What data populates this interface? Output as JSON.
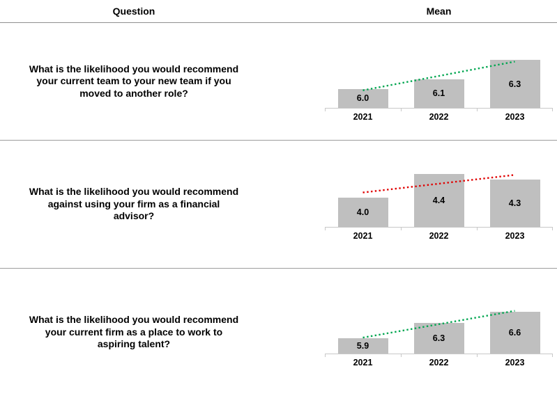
{
  "headers": {
    "question": "Question",
    "mean": "Mean"
  },
  "rows": [
    {
      "question": "What is the likelihood you would recommend your current team to your new team if you moved to another role?",
      "question_lines": [
        "What is the likelihood you would recommend",
        "your current team to your new team if you",
        "moved to another role?"
      ]
    },
    {
      "question": "What is the likelihood you would recommend against using your firm as a financial advisor?",
      "question_lines": [
        "What is the likelihood you would recommend",
        "against using your firm as a financial",
        "advisor?"
      ]
    },
    {
      "question": "What is the likelihood you would recommend your current firm as a place to work to aspiring talent?",
      "question_lines": [
        "What is the likelihood you would recommend",
        "your current firm as a place to work to",
        "aspiring talent?"
      ]
    }
  ],
  "chart_data": [
    {
      "type": "bar",
      "title": "Mean",
      "categories": [
        "2021",
        "2022",
        "2023"
      ],
      "values": [
        6.0,
        6.1,
        6.3
      ],
      "labels": [
        "6.0",
        "6.1",
        "6.3"
      ],
      "bar_color": "#BFBFBF",
      "trend": {
        "type": "linear",
        "style": "dotted",
        "color": "#00A650",
        "direction": "up"
      },
      "ylim": [
        5.8,
        6.6
      ],
      "grid": false,
      "data_label_position": "center"
    },
    {
      "type": "bar",
      "title": "Mean",
      "categories": [
        "2021",
        "2022",
        "2023"
      ],
      "values": [
        4.0,
        4.4,
        4.3
      ],
      "labels": [
        "4.0",
        "4.4",
        "4.3"
      ],
      "bar_color": "#BFBFBF",
      "trend": {
        "type": "linear",
        "style": "dotted",
        "color": "#E00000",
        "direction": "up"
      },
      "ylim": [
        3.5,
        4.8
      ],
      "grid": false,
      "data_label_position": "center"
    },
    {
      "type": "bar",
      "title": "Mean",
      "categories": [
        "2021",
        "2022",
        "2023"
      ],
      "values": [
        5.9,
        6.3,
        6.6
      ],
      "labels": [
        "5.9",
        "6.3",
        "6.6"
      ],
      "bar_color": "#BFBFBF",
      "trend": {
        "type": "linear",
        "style": "dotted",
        "color": "#00A650",
        "direction": "up"
      },
      "ylim": [
        5.5,
        7.5
      ],
      "grid": false,
      "data_label_position": "center"
    }
  ]
}
